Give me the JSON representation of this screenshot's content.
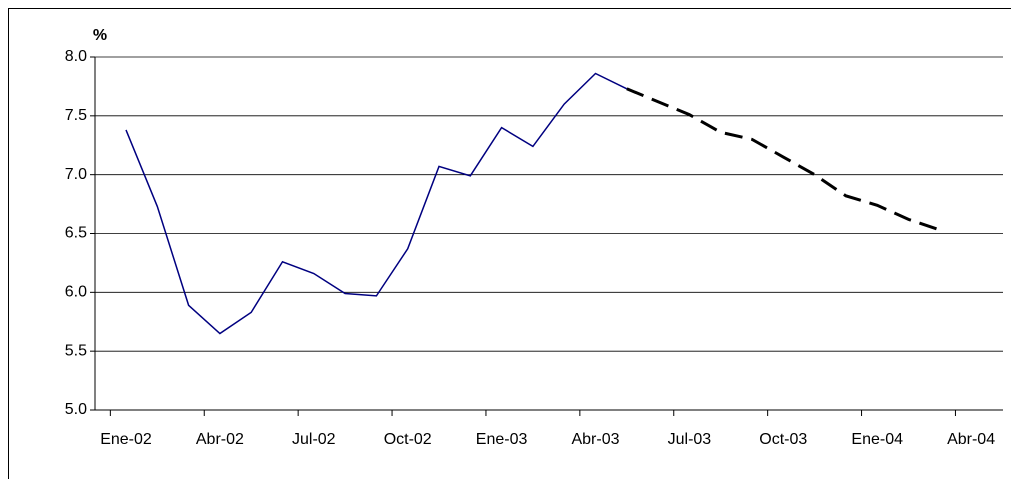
{
  "chart_data": {
    "type": "line",
    "y_label": "%",
    "categories": [
      "Ene-02",
      null,
      null,
      "Abr-02",
      null,
      null,
      "Jul-02",
      null,
      null,
      "Oct-02",
      null,
      null,
      "Ene-03",
      null,
      null,
      "Abr-03",
      null,
      null,
      "Jul-03",
      null,
      null,
      "Oct-03",
      null,
      null,
      "Ene-04",
      null,
      null,
      "Abr-04"
    ],
    "series": [
      {
        "color": "#000080",
        "dash": false,
        "values": [
          7.38,
          6.73,
          5.89,
          5.65,
          5.83,
          6.26,
          6.16,
          5.99,
          5.97,
          6.37,
          7.07,
          6.99,
          7.4,
          7.24,
          7.6,
          7.86,
          7.73,
          null,
          null,
          null,
          null,
          null,
          null,
          null,
          null,
          null,
          null,
          null
        ]
      },
      {
        "color": "#000000",
        "dash": true,
        "values": [
          null,
          null,
          null,
          null,
          null,
          null,
          null,
          null,
          null,
          null,
          null,
          null,
          null,
          null,
          null,
          null,
          7.73,
          7.62,
          7.51,
          7.36,
          7.3,
          7.15,
          7.0,
          6.82,
          6.74,
          6.62,
          6.53,
          null
        ]
      }
    ],
    "ylim": [
      5,
      8
    ],
    "yticks": [
      {
        "value": 5,
        "label": "5.0"
      },
      5.5,
      {
        "value": 6,
        "label": "6.0"
      },
      6.5,
      {
        "value": 7,
        "label": "7.0"
      },
      7.5,
      {
        "value": 8,
        "label": "8.0"
      }
    ],
    "grid": true
  }
}
